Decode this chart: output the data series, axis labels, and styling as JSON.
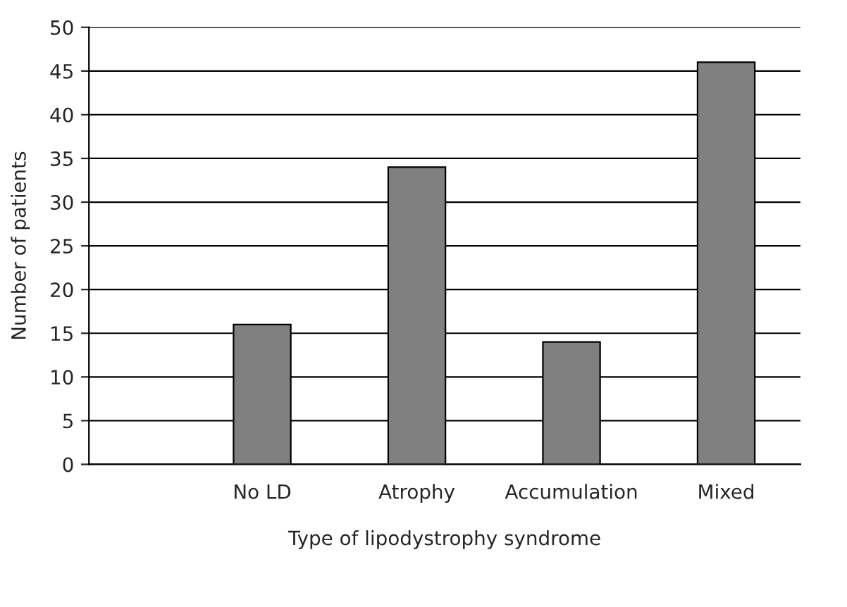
{
  "chart_data": {
    "type": "bar",
    "xlabel": "Type of lipodystrophy syndrome",
    "ylabel": "Number of patients",
    "categories": [
      "No LD",
      "Atrophy",
      "Accumulation",
      "Mixed"
    ],
    "values": [
      16,
      34,
      14,
      46
    ],
    "color": "#808080",
    "ylim": [
      0,
      50
    ],
    "yticks": [
      0,
      5,
      10,
      15,
      20,
      25,
      30,
      35,
      40,
      45,
      50
    ],
    "grid": "y"
  }
}
